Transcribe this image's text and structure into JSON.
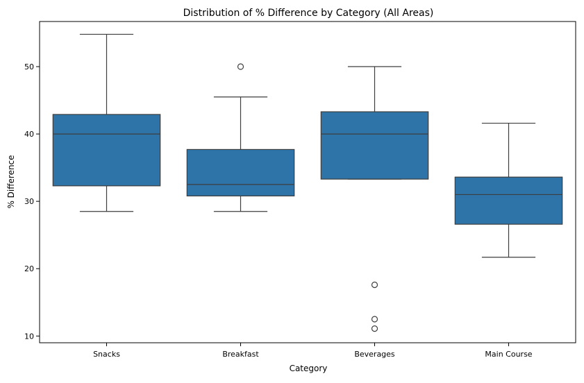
{
  "chart_data": {
    "type": "box",
    "title": "Distribution of % Difference by Category (All Areas)",
    "xlabel": "Category",
    "ylabel": "% Difference",
    "ylim": [
      9,
      56.7
    ],
    "yticks": [
      10,
      20,
      30,
      40,
      50
    ],
    "grid": false,
    "legend": "none",
    "box_color": "#2f74a8",
    "line_color": "#3d3d3d",
    "categories": [
      "Snacks",
      "Breakfast",
      "Beverages",
      "Main Course"
    ],
    "boxes": [
      {
        "category": "Snacks",
        "whisker_low": 28.5,
        "q1": 32.3,
        "median": 40.0,
        "q3": 42.9,
        "whisker_high": 54.8,
        "outliers": []
      },
      {
        "category": "Breakfast",
        "whisker_low": 28.5,
        "q1": 30.8,
        "median": 32.5,
        "q3": 37.7,
        "whisker_high": 45.5,
        "outliers": [
          50.0
        ]
      },
      {
        "category": "Beverages",
        "whisker_low": 33.3,
        "q1": 33.3,
        "median": 40.0,
        "q3": 43.3,
        "whisker_high": 50.0,
        "outliers": [
          17.6,
          12.5,
          11.1
        ]
      },
      {
        "category": "Main Course",
        "whisker_low": 21.7,
        "q1": 26.6,
        "median": 31.0,
        "q3": 33.6,
        "whisker_high": 41.6,
        "outliers": []
      }
    ]
  }
}
